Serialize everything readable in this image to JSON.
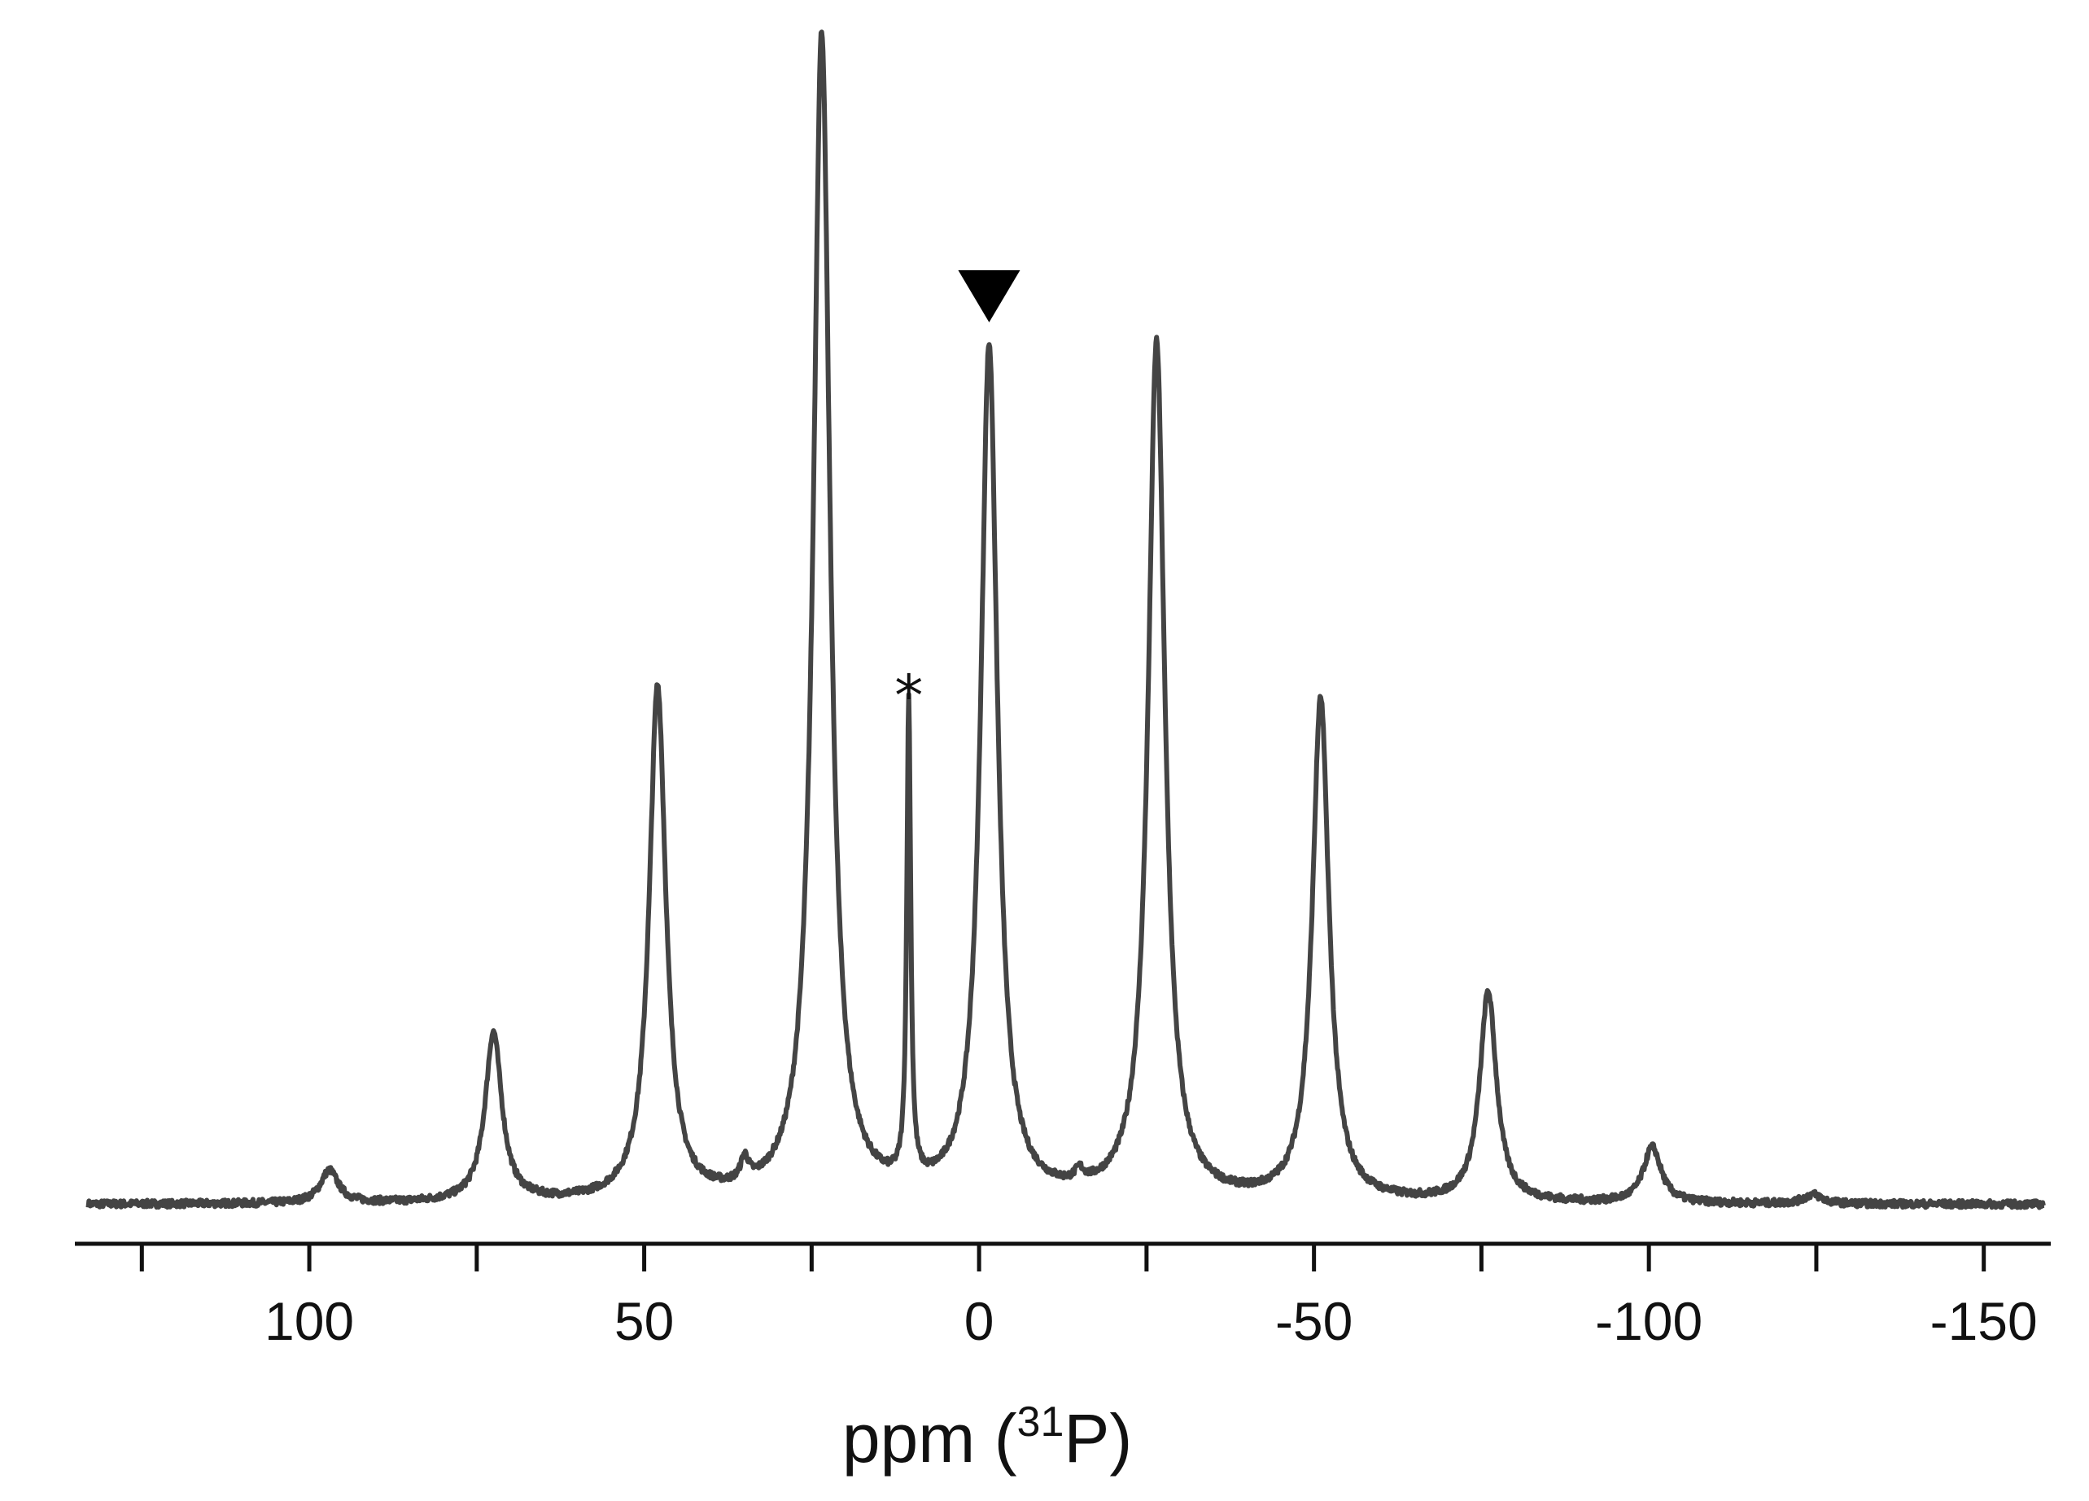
{
  "chart_data": {
    "type": "line",
    "xlabel": {
      "prefix": "ppm (",
      "superscript": "31",
      "suffix": "P)"
    },
    "xlim": [
      135,
      -160
    ],
    "x_reversed": true,
    "ylim": [
      0,
      1.0
    ],
    "grid": false,
    "legend": "none",
    "major_ticks": [
      100,
      50,
      0,
      -50,
      -100,
      -150
    ],
    "minor_ticks": [
      125,
      75,
      25,
      -25,
      -75,
      -125
    ],
    "tick_labels": [
      "100",
      "50",
      "0",
      "-50",
      "-100",
      "-150"
    ],
    "colors": {
      "line": "#444444",
      "axis": "#111111",
      "marker": "#000000"
    },
    "peaks": [
      {
        "x": 97,
        "height": 0.028,
        "width": 1.6
      },
      {
        "x": 72.5,
        "height": 0.145,
        "width": 1.5
      },
      {
        "x": 48,
        "height": 0.44,
        "width": 1.5
      },
      {
        "x": 35,
        "height": 0.02,
        "width": 0.7
      },
      {
        "x": 23.5,
        "height": 1.0,
        "width": 1.5
      },
      {
        "x": 10.5,
        "height": 0.41,
        "width": 0.35
      },
      {
        "x": -1.5,
        "height": 0.73,
        "width": 1.5
      },
      {
        "x": -15,
        "height": 0.01,
        "width": 0.8
      },
      {
        "x": -26.5,
        "height": 0.735,
        "width": 1.5
      },
      {
        "x": -51,
        "height": 0.43,
        "width": 1.5
      },
      {
        "x": -76,
        "height": 0.18,
        "width": 1.5
      },
      {
        "x": -100.5,
        "height": 0.048,
        "width": 1.6
      },
      {
        "x": -124.5,
        "height": 0.008,
        "width": 1.6
      }
    ],
    "annotations": [
      {
        "type": "asterisk",
        "text": "*",
        "x": 10.5,
        "height": 0.455
      },
      {
        "type": "triangle-down",
        "x": -1.5,
        "height": 0.8
      }
    ]
  }
}
